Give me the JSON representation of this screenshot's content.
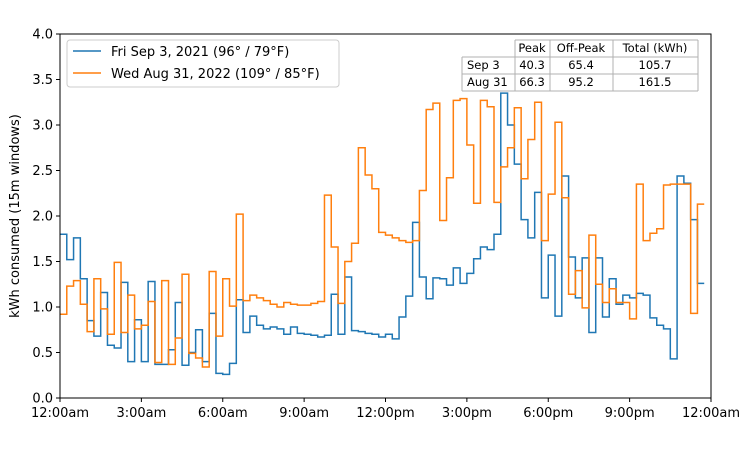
{
  "chart_data": {
    "type": "line",
    "title": "",
    "ylabel": "kWh consumed (15m windows)",
    "xlabel": "",
    "ylim": [
      0,
      4
    ],
    "yticks": [
      "0.0",
      "0.5",
      "1.0",
      "1.5",
      "2.0",
      "2.5",
      "3.0",
      "3.5",
      "4.0"
    ],
    "xticks": [
      "12:00am",
      "3:00am",
      "6:00am",
      "9:00am",
      "12:00pm",
      "3:00pm",
      "6:00pm",
      "9:00pm",
      "12:00am"
    ],
    "x_step_minutes": 15,
    "grid": false,
    "legend_position": "top-left",
    "series": [
      {
        "name": "Fri Sep 3, 2021 (96° / 79°F)",
        "color": "#1f77b4",
        "values": [
          1.8,
          1.52,
          1.76,
          1.31,
          0.85,
          0.68,
          1.16,
          0.58,
          0.55,
          1.27,
          0.4,
          0.86,
          0.4,
          1.28,
          0.37,
          0.37,
          0.53,
          1.05,
          0.36,
          0.5,
          0.75,
          0.4,
          0.93,
          0.27,
          0.26,
          0.38,
          1.08,
          0.72,
          0.9,
          0.8,
          0.76,
          0.78,
          0.76,
          0.7,
          0.78,
          0.71,
          0.7,
          0.69,
          0.67,
          0.69,
          1.14,
          0.7,
          1.33,
          0.74,
          0.73,
          0.71,
          0.7,
          0.67,
          0.7,
          0.65,
          0.89,
          1.12,
          1.93,
          1.33,
          1.09,
          1.32,
          1.31,
          1.24,
          1.43,
          1.26,
          1.37,
          1.53,
          1.66,
          1.63,
          1.8,
          3.35,
          3.0,
          2.57,
          1.96,
          1.76,
          2.26,
          1.1,
          1.57,
          0.9,
          2.44,
          1.55,
          1.1,
          1.54,
          0.72,
          1.54,
          0.89,
          1.31,
          1.03,
          1.13,
          1.1,
          1.15,
          1.13,
          0.88,
          0.8,
          0.76,
          0.43,
          2.44,
          2.36,
          1.96,
          1.26
        ]
      },
      {
        "name": "Wed Aug 31, 2022 (109° / 85°F)",
        "color": "#ff7f0e",
        "values": [
          0.92,
          1.23,
          1.29,
          1.03,
          0.73,
          1.31,
          0.98,
          0.7,
          1.49,
          0.72,
          1.13,
          0.76,
          0.8,
          1.06,
          0.39,
          1.29,
          0.37,
          0.66,
          1.36,
          0.49,
          0.44,
          0.34,
          1.39,
          0.68,
          1.31,
          1.01,
          2.02,
          1.07,
          1.13,
          1.1,
          1.07,
          1.03,
          1.0,
          1.05,
          1.03,
          1.02,
          1.02,
          1.04,
          1.06,
          2.23,
          1.66,
          1.04,
          1.5,
          1.7,
          2.75,
          2.45,
          2.3,
          1.82,
          1.79,
          1.76,
          1.73,
          1.71,
          1.73,
          2.28,
          3.17,
          3.24,
          1.95,
          2.42,
          3.27,
          3.29,
          2.78,
          2.14,
          3.27,
          3.2,
          2.15,
          2.54,
          2.75,
          3.19,
          2.41,
          2.84,
          3.25,
          1.73,
          2.24,
          3.03,
          2.2,
          1.14,
          1.4,
          0.99,
          1.79,
          1.25,
          1.05,
          1.2,
          1.05,
          1.05,
          0.87,
          2.35,
          1.73,
          1.81,
          1.86,
          2.34,
          2.35,
          2.35,
          2.35,
          0.93,
          2.13
        ]
      }
    ],
    "table": {
      "headers": [
        "",
        "Peak",
        "Off-Peak",
        "Total (kWh)"
      ],
      "rows": [
        [
          "Sep 3",
          "40.3",
          "65.4",
          "105.7"
        ],
        [
          "Aug 31",
          "66.3",
          "95.2",
          "161.5"
        ]
      ]
    }
  }
}
